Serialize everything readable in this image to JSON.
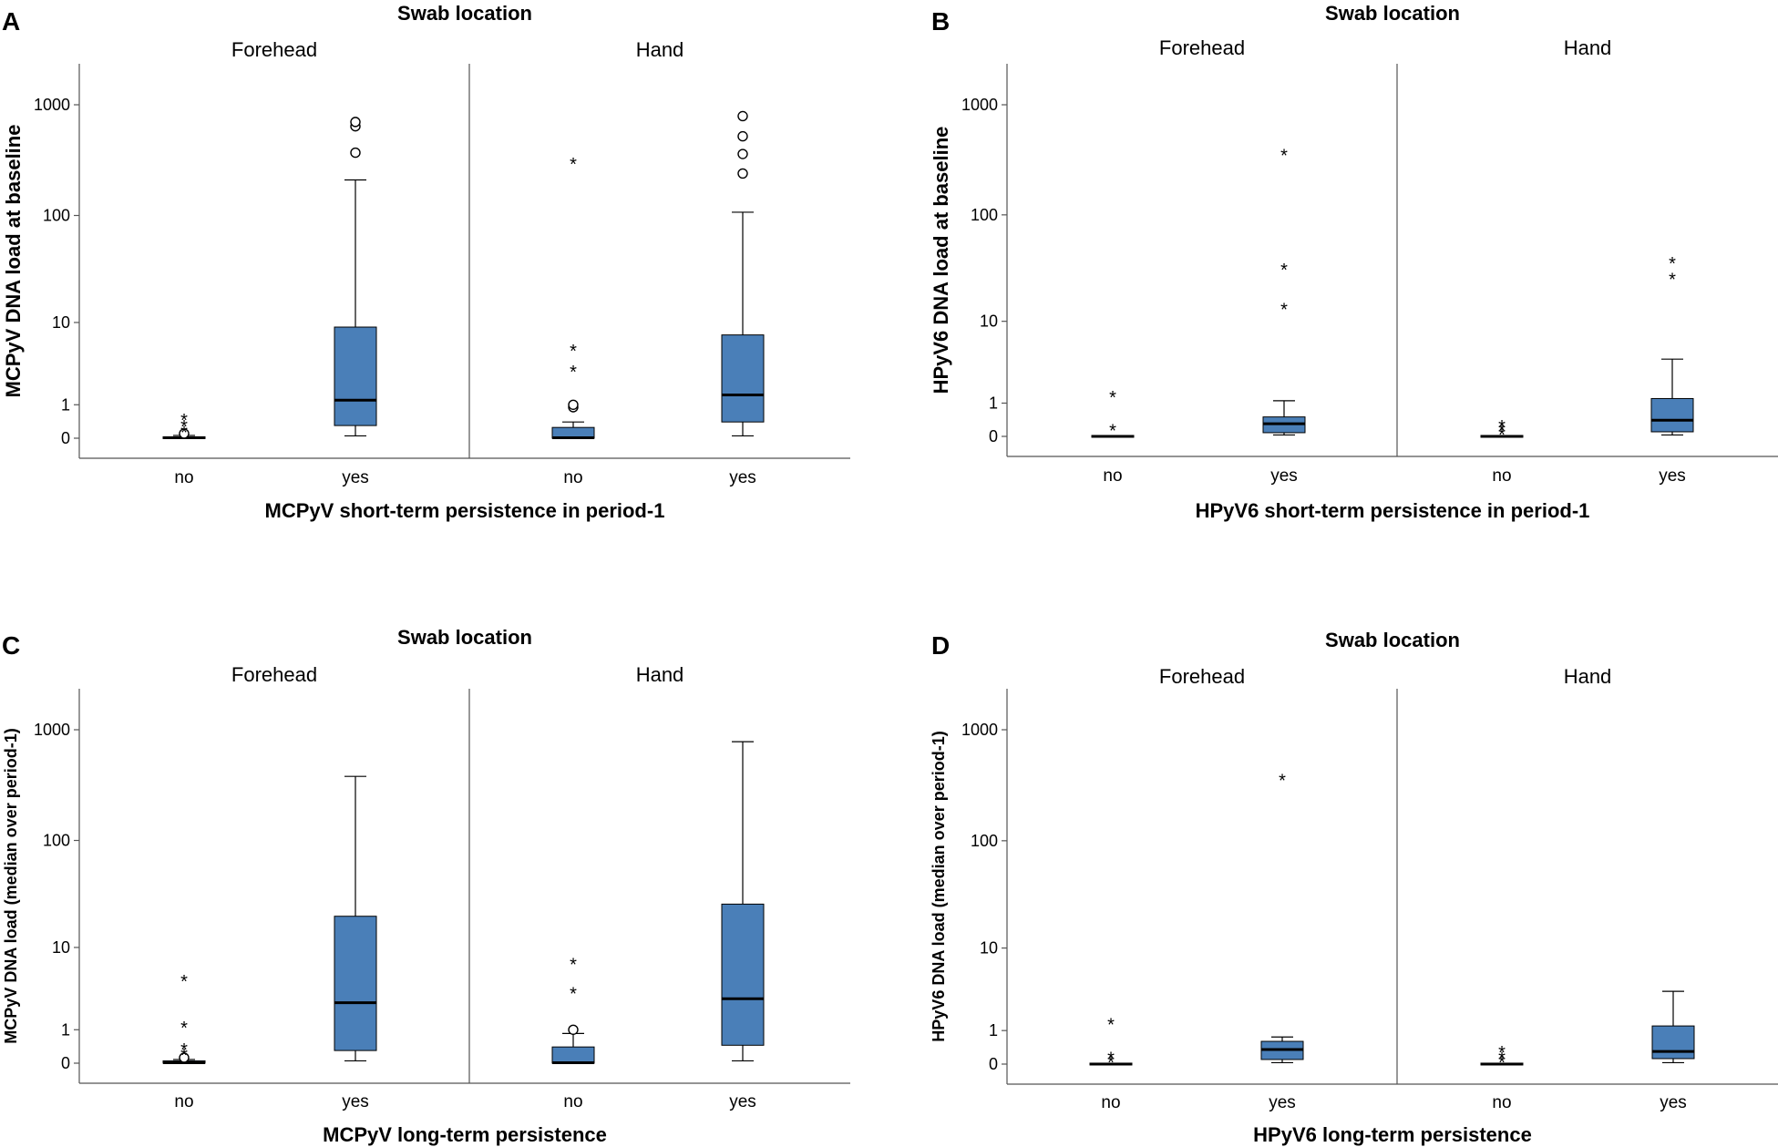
{
  "chart_data": [
    {
      "panel": "A",
      "type": "box",
      "title": "Swab location",
      "ylabel": "MCPyV DNA load at baseline",
      "xlabel": "MCPyV short-term persistence in period-1",
      "scale": "log1p",
      "ylim": [
        -0.2,
        2000
      ],
      "yticks": [
        0,
        1,
        10,
        100,
        1000
      ],
      "ytick_labels": [
        "0",
        "1",
        "10",
        "100",
        "1000"
      ],
      "facets": [
        {
          "label": "Forehead",
          "groups": [
            {
              "category": "no",
              "min": 0,
              "q1": 0,
              "median": 0.01,
              "q3": 0.03,
              "max": 0.06,
              "outliers": [
                {
                  "value": 0.1,
                  "symbol": "o"
                },
                {
                  "value": 0.2,
                  "symbol": "*"
                },
                {
                  "value": 0.35,
                  "symbol": "*"
                },
                {
                  "value": 0.55,
                  "symbol": "*"
                }
              ]
            },
            {
              "category": "yes",
              "min": 0.05,
              "q1": 0.3,
              "median": 1.2,
              "q3": 9,
              "max": 210,
              "outliers": [
                {
                  "value": 370,
                  "symbol": "o"
                },
                {
                  "value": 640,
                  "symbol": "o"
                },
                {
                  "value": 700,
                  "symbol": "o"
                }
              ]
            }
          ]
        },
        {
          "label": "Hand",
          "groups": [
            {
              "category": "no",
              "min": 0,
              "q1": 0,
              "median": 0.01,
              "q3": 0.25,
              "max": 0.4,
              "outliers": [
                {
                  "value": 0.9,
                  "symbol": "o"
                },
                {
                  "value": 1.0,
                  "symbol": "o"
                },
                {
                  "value": 3.2,
                  "symbol": "*"
                },
                {
                  "value": 5.5,
                  "symbol": "*"
                },
                {
                  "value": 310,
                  "symbol": "*"
                }
              ]
            },
            {
              "category": "yes",
              "min": 0.05,
              "q1": 0.4,
              "median": 1.45,
              "q3": 7.5,
              "max": 107,
              "outliers": [
                {
                  "value": 240,
                  "symbol": "o"
                },
                {
                  "value": 360,
                  "symbol": "o"
                },
                {
                  "value": 520,
                  "symbol": "o"
                },
                {
                  "value": 790,
                  "symbol": "o"
                }
              ]
            }
          ]
        }
      ]
    },
    {
      "panel": "B",
      "type": "box",
      "title": "Swab location",
      "ylabel": "HPyV6 DNA load at baseline",
      "xlabel": "HPyV6 short-term persistence in period-1",
      "scale": "log1p",
      "ylim": [
        -0.2,
        2000
      ],
      "yticks": [
        0,
        1,
        10,
        100,
        1000
      ],
      "ytick_labels": [
        "0",
        "1",
        "10",
        "100",
        "1000"
      ],
      "facets": [
        {
          "label": "Forehead",
          "groups": [
            {
              "category": "no",
              "min": 0,
              "q1": 0,
              "median": 0,
              "q3": 0.02,
              "max": 0.03,
              "outliers": [
                {
                  "value": 0.2,
                  "symbol": "*"
                },
                {
                  "value": 1.4,
                  "symbol": "*"
                }
              ]
            },
            {
              "category": "yes",
              "min": 0.03,
              "q1": 0.08,
              "median": 0.3,
              "q3": 0.5,
              "max": 1.1,
              "outliers": [
                {
                  "value": 14,
                  "symbol": "*"
                },
                {
                  "value": 33,
                  "symbol": "*"
                },
                {
                  "value": 370,
                  "symbol": "*"
                }
              ]
            }
          ]
        },
        {
          "label": "Hand",
          "groups": [
            {
              "category": "no",
              "min": 0,
              "q1": 0,
              "median": 0,
              "q3": 0.02,
              "max": 0.03,
              "outliers": [
                {
                  "value": 0.1,
                  "symbol": "*"
                },
                {
                  "value": 0.2,
                  "symbol": "*"
                },
                {
                  "value": 0.3,
                  "symbol": "*"
                }
              ]
            },
            {
              "category": "yes",
              "min": 0.03,
              "q1": 0.1,
              "median": 0.4,
              "q3": 1.2,
              "max": 4,
              "outliers": [
                {
                  "value": 27,
                  "symbol": "*"
                },
                {
                  "value": 38,
                  "symbol": "*"
                }
              ]
            }
          ]
        }
      ]
    },
    {
      "panel": "C",
      "type": "box",
      "title": "Swab location",
      "ylabel": "MCPyV DNA load (median over period-1)",
      "xlabel": "MCPyV long-term persistence",
      "scale": "log1p",
      "ylim": [
        -0.2,
        2000
      ],
      "yticks": [
        0,
        1,
        10,
        100,
        1000
      ],
      "ytick_labels": [
        "0",
        "1",
        "10",
        "100",
        "1000"
      ],
      "facets": [
        {
          "label": "Forehead",
          "groups": [
            {
              "category": "no",
              "min": 0,
              "q1": 0,
              "median": 0.01,
              "q3": 0.05,
              "max": 0.08,
              "outliers": [
                {
                  "value": 0.12,
                  "symbol": "o"
                },
                {
                  "value": 0.25,
                  "symbol": "*"
                },
                {
                  "value": 0.4,
                  "symbol": "*"
                },
                {
                  "value": 1.2,
                  "symbol": "*"
                },
                {
                  "value": 4.8,
                  "symbol": "*"
                }
              ]
            },
            {
              "category": "yes",
              "min": 0.05,
              "q1": 0.3,
              "median": 2.5,
              "q3": 20,
              "max": 380,
              "outliers": []
            }
          ]
        },
        {
          "label": "Hand",
          "groups": [
            {
              "category": "no",
              "min": 0,
              "q1": 0,
              "median": 0.01,
              "q3": 0.4,
              "max": 0.85,
              "outliers": [
                {
                  "value": 1.0,
                  "symbol": "o"
                },
                {
                  "value": 3.5,
                  "symbol": "*"
                },
                {
                  "value": 7.2,
                  "symbol": "*"
                }
              ]
            },
            {
              "category": "yes",
              "min": 0.05,
              "q1": 0.45,
              "median": 2.8,
              "q3": 26,
              "max": 780,
              "outliers": []
            }
          ]
        }
      ]
    },
    {
      "panel": "D",
      "type": "box",
      "title": "Swab location",
      "ylabel": "HPyV6 DNA load (median over period-1)",
      "xlabel": "HPyV6 long-term persistence",
      "scale": "log1p",
      "ylim": [
        -0.2,
        2000
      ],
      "yticks": [
        0,
        1,
        10,
        100,
        1000
      ],
      "ytick_labels": [
        "0",
        "1",
        "10",
        "100",
        "1000"
      ],
      "facets": [
        {
          "label": "Forehead",
          "groups": [
            {
              "category": "no",
              "min": 0,
              "q1": 0,
              "median": 0,
              "q3": 0.02,
              "max": 0.03,
              "outliers": [
                {
                  "value": 0.1,
                  "symbol": "*"
                },
                {
                  "value": 0.2,
                  "symbol": "*"
                },
                {
                  "value": 1.4,
                  "symbol": "*"
                }
              ]
            },
            {
              "category": "yes",
              "min": 0.03,
              "q1": 0.1,
              "median": 0.35,
              "q3": 0.6,
              "max": 0.75,
              "outliers": [
                {
                  "value": 370,
                  "symbol": "*"
                }
              ]
            }
          ]
        },
        {
          "label": "Hand",
          "groups": [
            {
              "category": "no",
              "min": 0,
              "q1": 0,
              "median": 0,
              "q3": 0.02,
              "max": 0.03,
              "outliers": [
                {
                  "value": 0.1,
                  "symbol": "*"
                },
                {
                  "value": 0.2,
                  "symbol": "*"
                },
                {
                  "value": 0.35,
                  "symbol": "*"
                }
              ]
            },
            {
              "category": "yes",
              "min": 0.03,
              "q1": 0.12,
              "median": 0.3,
              "q3": 1.2,
              "max": 3.5,
              "outliers": []
            }
          ]
        }
      ]
    }
  ],
  "style": {
    "box_fill": "#4a7fb8",
    "line_color": "#000000",
    "axis_color": "#555555"
  }
}
